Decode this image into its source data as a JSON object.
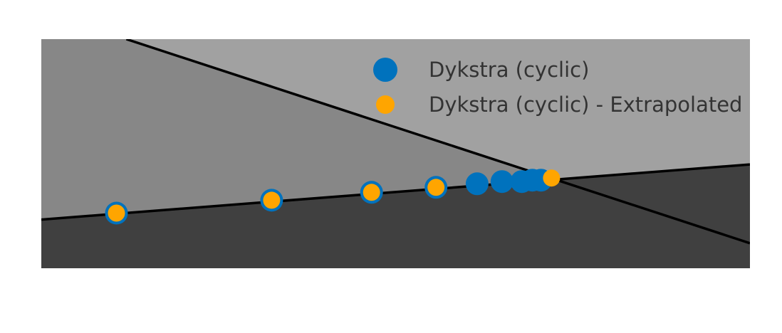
{
  "chart_data": {
    "type": "scatter",
    "xlim": [
      0,
      10
    ],
    "ylim": [
      0,
      3.2
    ],
    "axes_visible": false,
    "grid": false,
    "legend_placement": "top-right",
    "regions": [
      {
        "name": "",
        "color": "#a1a1a1",
        "polygon": [
          [
            0,
            3.2
          ],
          [
            10,
            3.2
          ],
          [
            10,
            0.35
          ],
          [
            0,
            3.2
          ]
        ]
      },
      {
        "name": "",
        "color": "#878787",
        "polygon": [
          [
            0,
            3.2
          ],
          [
            1.2,
            3.2
          ],
          [
            10,
            0.35
          ],
          [
            10,
            1.45
          ],
          [
            0,
            0.68
          ]
        ]
      },
      {
        "name": "",
        "color": "#404040",
        "polygon": [
          [
            0,
            0
          ],
          [
            10,
            0
          ],
          [
            10,
            1.45
          ],
          [
            0,
            0.68
          ]
        ]
      }
    ],
    "lines": [
      {
        "color": "#000000",
        "points": [
          [
            1.2,
            3.2
          ],
          [
            10,
            0.35
          ]
        ]
      },
      {
        "color": "#000000",
        "points": [
          [
            0,
            0.68
          ],
          [
            10,
            1.45
          ]
        ]
      }
    ],
    "series": [
      {
        "name": "Dykstra (cyclic)",
        "color": "#0072bd",
        "marker_size": "large",
        "x": [
          1.06,
          3.25,
          4.66,
          5.57,
          6.15,
          6.5,
          6.78,
          6.93,
          7.05
        ],
        "y": [
          0.77,
          0.95,
          1.06,
          1.13,
          1.18,
          1.21,
          1.21,
          1.23,
          1.23
        ]
      },
      {
        "name": "Dykstra (cyclic) - Extrapolated",
        "color": "#ffa500",
        "marker_size": "small",
        "x": [
          1.06,
          3.25,
          4.66,
          5.57,
          7.2
        ],
        "y": [
          0.77,
          0.95,
          1.06,
          1.13,
          1.26
        ]
      }
    ]
  }
}
